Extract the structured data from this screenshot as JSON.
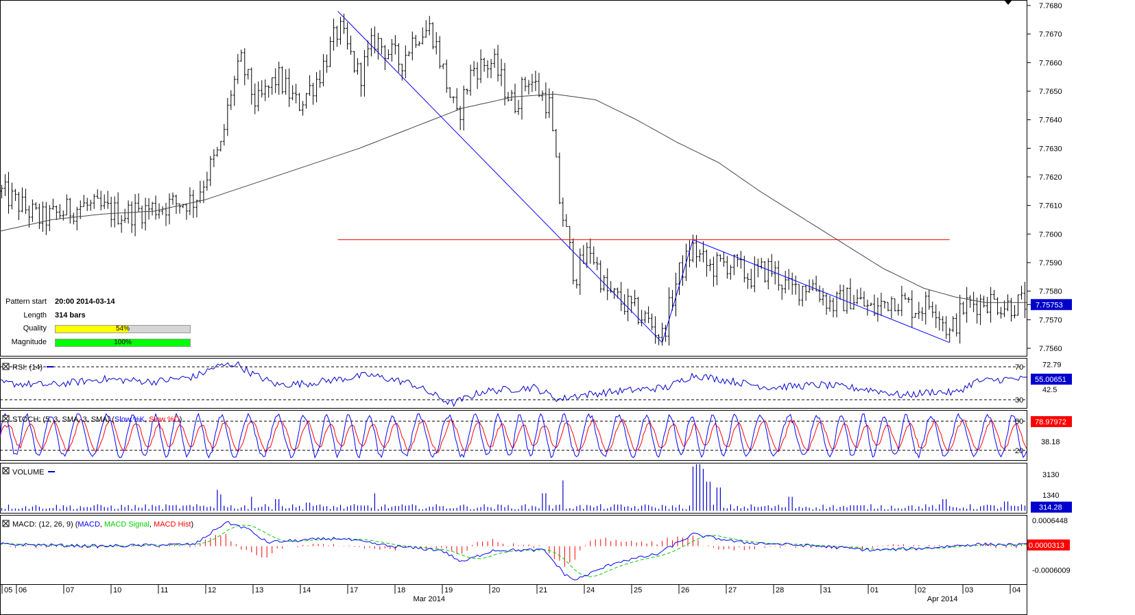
{
  "pattern_info": {
    "rows": [
      {
        "label": "Pattern start",
        "value": "20:00 2014-03-14"
      },
      {
        "label": "Length",
        "value": "314 bars"
      }
    ],
    "quality": {
      "label": "Quality",
      "text": "54%",
      "fraction": 0.54,
      "color": "#ffff00"
    },
    "magnitude": {
      "label": "Magnitude",
      "text": "100%",
      "fraction": 1.0,
      "color": "#00ff00"
    }
  },
  "colors": {
    "candle": "#000000",
    "sma": "#444444",
    "pattern_line": "#0000ff",
    "resistance_line": "#ff0000",
    "rsi": "#0000cc",
    "stoch_k": "#0000ff",
    "stoch_d": "#ff0000",
    "volume": "#0000cc",
    "macd": "#0000ff",
    "macd_signal": "#00cc00",
    "macd_hist": "#ff0000",
    "label_box": "#0000cc",
    "label_box_red": "#ff0000"
  },
  "chart_data": [
    {
      "type": "line",
      "subtype": "ohlc",
      "panel": "price",
      "ylim": [
        7.7558,
        7.7682
      ],
      "y_ticks": [
        "7.7680",
        "7.7670",
        "7.7660",
        "7.7650",
        "7.7640",
        "7.7630",
        "7.7620",
        "7.7610",
        "7.7600",
        "7.7590",
        "7.7580",
        "7.7570",
        "7.7560"
      ],
      "y_tick_values": [
        7.768,
        7.767,
        7.766,
        7.765,
        7.764,
        7.763,
        7.762,
        7.761,
        7.76,
        7.759,
        7.758,
        7.757,
        7.756
      ],
      "last_value_label": "7.75753",
      "last_value": 7.75753,
      "sma_path": [
        [
          0,
          7.7601
        ],
        [
          0.05,
          7.7605
        ],
        [
          0.1,
          7.7607
        ],
        [
          0.15,
          7.7608
        ],
        [
          0.2,
          7.7612
        ],
        [
          0.25,
          7.7618
        ],
        [
          0.3,
          7.7624
        ],
        [
          0.35,
          7.763
        ],
        [
          0.4,
          7.7637
        ],
        [
          0.45,
          7.7644
        ],
        [
          0.5,
          7.7648
        ],
        [
          0.54,
          7.7649
        ],
        [
          0.58,
          7.7647
        ],
        [
          0.62,
          7.764
        ],
        [
          0.66,
          7.7632
        ],
        [
          0.7,
          7.7625
        ],
        [
          0.74,
          7.7615
        ],
        [
          0.78,
          7.7606
        ],
        [
          0.82,
          7.7597
        ],
        [
          0.86,
          7.7588
        ],
        [
          0.9,
          7.7581
        ],
        [
          0.93,
          7.7578
        ],
        [
          0.96,
          7.7576
        ],
        [
          1.0,
          7.7576
        ]
      ],
      "pattern_path": [
        [
          0.329,
          7.7678
        ],
        [
          0.645,
          7.7562
        ],
        [
          0.675,
          7.7598
        ],
        [
          0.925,
          7.7562
        ]
      ],
      "resistance": {
        "x0": 0.329,
        "x1": 0.925,
        "y": 7.7598
      },
      "anchors": [
        [
          0,
          7.7615
        ],
        [
          0.04,
          7.7605
        ],
        [
          0.08,
          7.761
        ],
        [
          0.12,
          7.7607
        ],
        [
          0.16,
          7.761
        ],
        [
          0.19,
          7.7612
        ],
        [
          0.2,
          7.762
        ],
        [
          0.215,
          7.763
        ],
        [
          0.225,
          7.765
        ],
        [
          0.235,
          7.766
        ],
        [
          0.25,
          7.7645
        ],
        [
          0.27,
          7.7655
        ],
        [
          0.29,
          7.7645
        ],
        [
          0.31,
          7.7655
        ],
        [
          0.33,
          7.7672
        ],
        [
          0.35,
          7.7655
        ],
        [
          0.365,
          7.7668
        ],
        [
          0.39,
          7.766
        ],
        [
          0.405,
          7.767
        ],
        [
          0.42,
          7.7672
        ],
        [
          0.445,
          7.764
        ],
        [
          0.46,
          7.7658
        ],
        [
          0.48,
          7.766
        ],
        [
          0.5,
          7.7645
        ],
        [
          0.515,
          7.7655
        ],
        [
          0.535,
          7.7645
        ],
        [
          0.545,
          7.7612
        ],
        [
          0.56,
          7.7585
        ],
        [
          0.575,
          7.7595
        ],
        [
          0.59,
          7.758
        ],
        [
          0.61,
          7.7575
        ],
        [
          0.63,
          7.757
        ],
        [
          0.645,
          7.7564
        ],
        [
          0.66,
          7.7585
        ],
        [
          0.675,
          7.7595
        ],
        [
          0.69,
          7.7588
        ],
        [
          0.71,
          7.759
        ],
        [
          0.73,
          7.7585
        ],
        [
          0.75,
          7.7588
        ],
        [
          0.77,
          7.758
        ],
        [
          0.79,
          7.7583
        ],
        [
          0.81,
          7.7575
        ],
        [
          0.83,
          7.7578
        ],
        [
          0.85,
          7.7573
        ],
        [
          0.87,
          7.7578
        ],
        [
          0.89,
          7.7574
        ],
        [
          0.91,
          7.7576
        ],
        [
          0.925,
          7.7565
        ],
        [
          0.94,
          7.7575
        ],
        [
          0.96,
          7.7577
        ],
        [
          0.98,
          7.7575
        ],
        [
          1.0,
          7.7576
        ]
      ]
    },
    {
      "type": "line",
      "panel": "rsi",
      "title": "RSI: (14)",
      "levels": [
        70,
        30
      ],
      "ylim": [
        20,
        80
      ],
      "y_ticks": [
        "72.79",
        "42.5"
      ],
      "y_tick_values": [
        72.79,
        42.5
      ],
      "level_labels": [
        "70",
        "30"
      ],
      "last_value_label": "55.00651",
      "last_value": 55.00651,
      "anchors": [
        [
          0,
          50
        ],
        [
          0.05,
          48
        ],
        [
          0.1,
          55
        ],
        [
          0.15,
          52
        ],
        [
          0.19,
          58
        ],
        [
          0.21,
          70
        ],
        [
          0.23,
          74
        ],
        [
          0.245,
          62
        ],
        [
          0.27,
          48
        ],
        [
          0.3,
          50
        ],
        [
          0.33,
          55
        ],
        [
          0.36,
          60
        ],
        [
          0.4,
          50
        ],
        [
          0.44,
          25
        ],
        [
          0.47,
          40
        ],
        [
          0.52,
          45
        ],
        [
          0.545,
          30
        ],
        [
          0.56,
          35
        ],
        [
          0.6,
          40
        ],
        [
          0.65,
          45
        ],
        [
          0.675,
          60
        ],
        [
          0.7,
          55
        ],
        [
          0.75,
          45
        ],
        [
          0.8,
          48
        ],
        [
          0.85,
          42
        ],
        [
          0.88,
          35
        ],
        [
          0.91,
          40
        ],
        [
          0.93,
          38
        ],
        [
          0.95,
          52
        ],
        [
          0.98,
          55
        ],
        [
          1.0,
          55
        ]
      ]
    },
    {
      "type": "line",
      "panel": "stoch",
      "title": "STOCH: (5, 3, SMA, 3, SMA)",
      "series": [
        {
          "name": "Slow %K"
        },
        {
          "name": "Slow %D"
        }
      ],
      "levels": [
        80,
        20
      ],
      "ylim": [
        0,
        100
      ],
      "y_ticks": [
        "38.18"
      ],
      "y_tick_values": [
        38.18
      ],
      "level_labels": [
        "80",
        "20"
      ],
      "last_value_label": "78.97972",
      "last_value": 78.97972,
      "cycles": 42,
      "amplitude_low": 10,
      "amplitude_high": 88
    },
    {
      "type": "bar",
      "panel": "volume",
      "title": "VOLUME",
      "ylim": [
        0,
        4000
      ],
      "y_ticks": [
        "3130",
        "1340"
      ],
      "y_tick_values": [
        3130,
        1340
      ],
      "last_value_label": "314.28",
      "last_value": 314.28,
      "spikes": [
        [
          0.212,
          1800
        ],
        [
          0.215,
          1400
        ],
        [
          0.245,
          1200
        ],
        [
          0.27,
          1000
        ],
        [
          0.3,
          700
        ],
        [
          0.365,
          1500
        ],
        [
          0.53,
          1500
        ],
        [
          0.548,
          2600
        ],
        [
          0.675,
          3800
        ],
        [
          0.68,
          4000
        ],
        [
          0.685,
          3600
        ],
        [
          0.69,
          2500
        ],
        [
          0.7,
          2000
        ],
        [
          0.77,
          1200
        ],
        [
          0.92,
          1000
        ],
        [
          0.98,
          800
        ]
      ]
    },
    {
      "type": "line",
      "panel": "macd",
      "title": "MACD: (12, 26, 9)",
      "series": [
        {
          "name": "MACD"
        },
        {
          "name": "MACD Signal"
        },
        {
          "name": "MACD Hist"
        }
      ],
      "ylim": [
        -0.00095,
        0.00075
      ],
      "y_ticks": [
        "0.0006448",
        "-0.0006009"
      ],
      "y_tick_values": [
        0.0006448,
        -0.0006009
      ],
      "last_value_label": "0.0000313",
      "last_value": 3.13e-05,
      "anchors": [
        [
          0,
          5e-05
        ],
        [
          0.1,
          0.0
        ],
        [
          0.19,
          5e-05
        ],
        [
          0.22,
          0.0006
        ],
        [
          0.24,
          0.00045
        ],
        [
          0.26,
          0.0001
        ],
        [
          0.33,
          0.0002
        ],
        [
          0.38,
          0.0
        ],
        [
          0.43,
          -0.0001
        ],
        [
          0.45,
          -0.0004
        ],
        [
          0.48,
          -0.0001
        ],
        [
          0.53,
          -0.0001
        ],
        [
          0.55,
          -0.0007
        ],
        [
          0.56,
          -0.00085
        ],
        [
          0.6,
          -0.0004
        ],
        [
          0.64,
          -0.0002
        ],
        [
          0.675,
          0.0003
        ],
        [
          0.72,
          0.0001
        ],
        [
          0.8,
          0.0
        ],
        [
          0.85,
          -0.0001
        ],
        [
          0.9,
          -5e-05
        ],
        [
          0.95,
          5e-05
        ],
        [
          1.0,
          3.13e-05
        ]
      ]
    }
  ],
  "x_axis": {
    "day_labels": [
      "05",
      "06",
      "07",
      "10",
      "11",
      "12",
      "13",
      "14",
      "17",
      "18",
      "19",
      "20",
      "21",
      "24",
      "25",
      "26",
      "27",
      "28",
      "31",
      "01",
      "02",
      "03",
      "04"
    ],
    "month_labels": [
      {
        "label": "Mar 2014",
        "frac": 0.418
      },
      {
        "label": "Apr 2014",
        "frac": 0.918
      }
    ]
  }
}
